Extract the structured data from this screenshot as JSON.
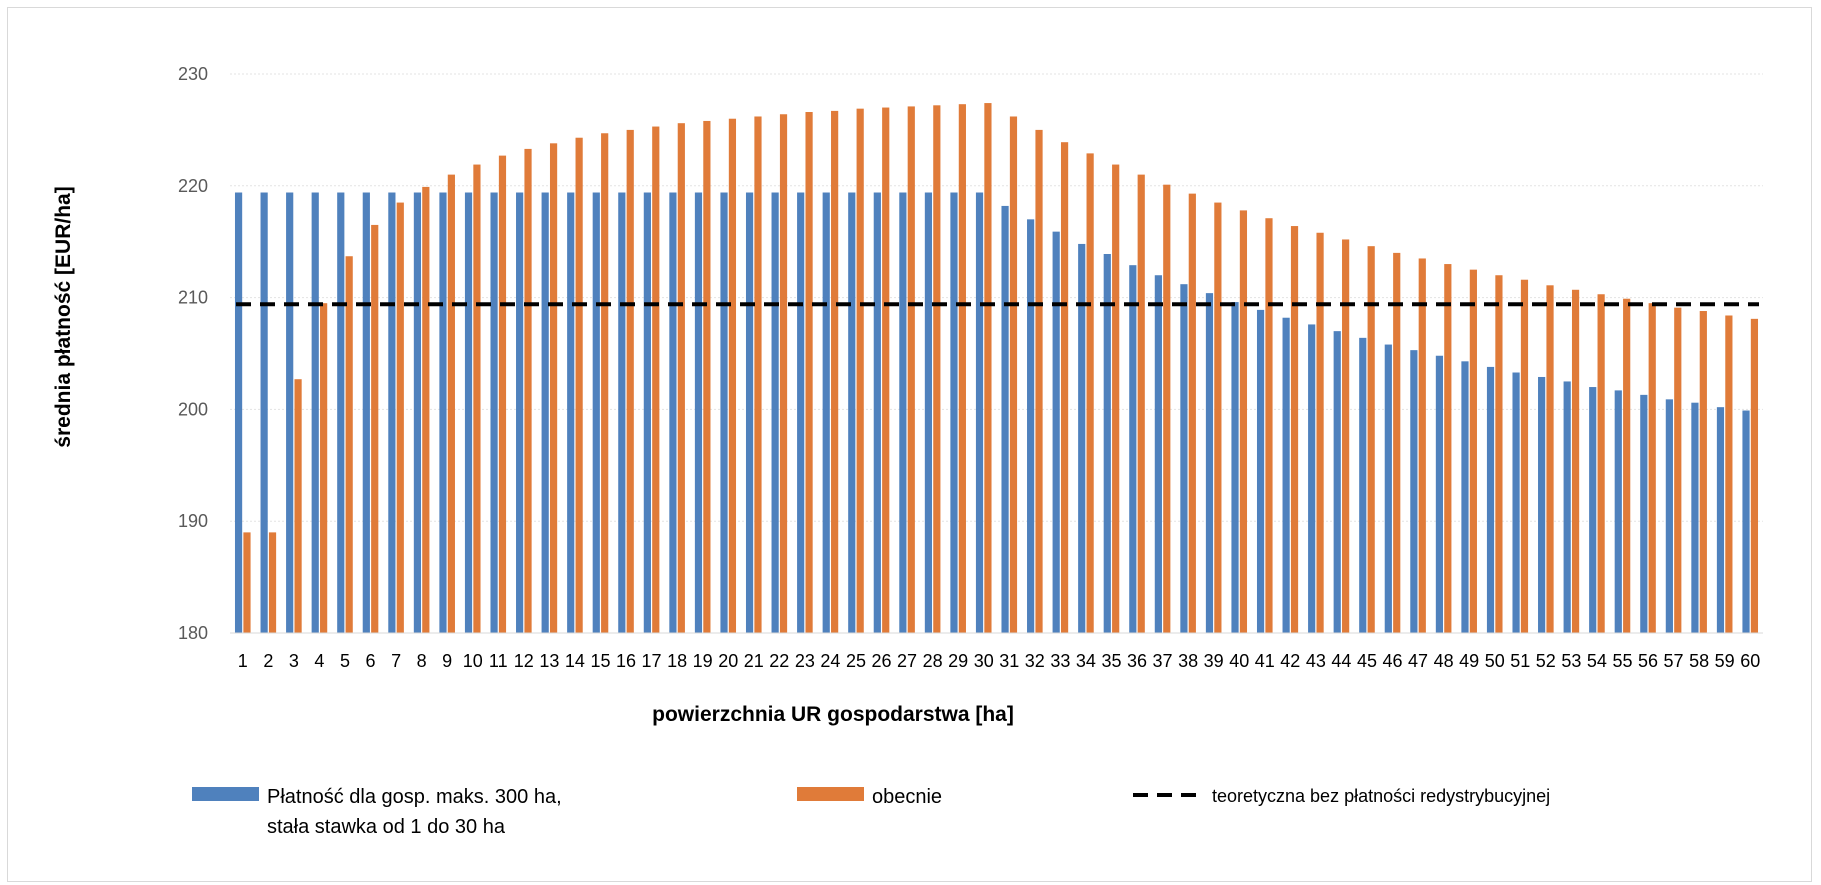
{
  "chart_data": {
    "type": "bar",
    "title": "",
    "xlabel": "powierzchnia UR gospodarstwa [ha]",
    "ylabel": "średnia płatność [EUR/ha]",
    "ylim": [
      180,
      230
    ],
    "yticks": [
      "180",
      "190",
      "200",
      "210",
      "220",
      "230"
    ],
    "grid": true,
    "legend_position": "bottom",
    "categories": [
      "1",
      "2",
      "3",
      "4",
      "5",
      "6",
      "7",
      "8",
      "9",
      "10",
      "11",
      "12",
      "13",
      "14",
      "15",
      "16",
      "17",
      "18",
      "19",
      "20",
      "21",
      "22",
      "23",
      "24",
      "25",
      "26",
      "27",
      "28",
      "29",
      "30",
      "31",
      "32",
      "33",
      "34",
      "35",
      "36",
      "37",
      "38",
      "39",
      "40",
      "41",
      "42",
      "43",
      "44",
      "45",
      "46",
      "47",
      "48",
      "49",
      "50",
      "51",
      "52",
      "53",
      "54",
      "55",
      "56",
      "57",
      "58",
      "59",
      "60"
    ],
    "series": [
      {
        "name": "Płatność dla gosp. maks. 300 ha, stała stawka od 1 do 30 ha",
        "legend_lines": [
          "Płatność dla gosp. maks. 300 ha,",
          "stała stawka od 1 do 30 ha"
        ],
        "color": "#4f81bd",
        "values": [
          219.4,
          219.4,
          219.4,
          219.4,
          219.4,
          219.4,
          219.4,
          219.4,
          219.4,
          219.4,
          219.4,
          219.4,
          219.4,
          219.4,
          219.4,
          219.4,
          219.4,
          219.4,
          219.4,
          219.4,
          219.4,
          219.4,
          219.4,
          219.4,
          219.4,
          219.4,
          219.4,
          219.4,
          219.4,
          219.4,
          218.2,
          217.0,
          215.9,
          214.8,
          213.9,
          212.9,
          212.0,
          211.2,
          210.4,
          209.6,
          208.9,
          208.2,
          207.6,
          207.0,
          206.4,
          205.8,
          205.3,
          204.8,
          204.3,
          203.8,
          203.3,
          202.9,
          202.5,
          202.0,
          201.7,
          201.3,
          200.9,
          200.6,
          200.2,
          199.9
        ]
      },
      {
        "name": "obecnie",
        "legend_lines": [
          "obecnie"
        ],
        "color": "#e07b39",
        "values": [
          189.0,
          189.0,
          202.7,
          209.5,
          213.7,
          216.5,
          218.5,
          219.9,
          221.0,
          221.9,
          222.7,
          223.3,
          223.8,
          224.3,
          224.7,
          225.0,
          225.3,
          225.6,
          225.8,
          226.0,
          226.2,
          226.4,
          226.6,
          226.7,
          226.9,
          227.0,
          227.1,
          227.2,
          227.3,
          227.4,
          226.2,
          225.0,
          223.9,
          222.9,
          221.9,
          221.0,
          220.1,
          219.3,
          218.5,
          217.8,
          217.1,
          216.4,
          215.8,
          215.2,
          214.6,
          214.0,
          213.5,
          213.0,
          212.5,
          212.0,
          211.6,
          211.1,
          210.7,
          210.3,
          209.9,
          209.5,
          209.1,
          208.8,
          208.4,
          208.1
        ]
      }
    ],
    "reference_line": {
      "name": "teoretyczna bez płatności redystrybucyjnej",
      "value": 209.4,
      "style": "dashed",
      "color": "#000000"
    }
  }
}
